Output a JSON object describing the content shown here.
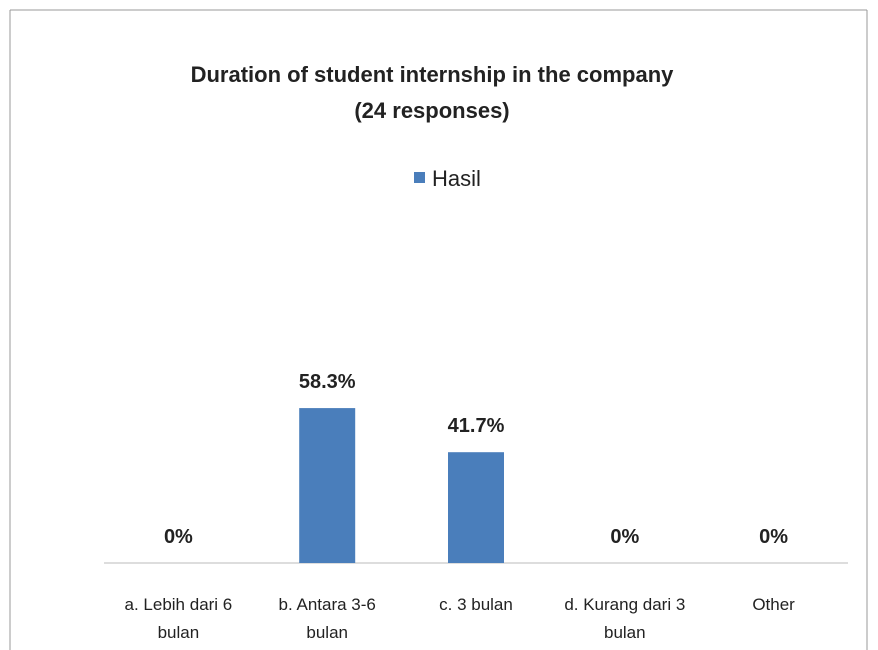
{
  "chart_data": {
    "type": "bar",
    "title": "Duration of student internship in the company",
    "subtitle": "(24 responses)",
    "categories": [
      "a. Lebih dari 6 bulan",
      "b. Antara 3-6 bulan",
      "c. 3 bulan",
      "d. Kurang dari 3 bulan",
      "Other"
    ],
    "series": [
      {
        "name": "Hasil",
        "color": "#4a7ebb",
        "values": [
          0,
          58.3,
          41.7,
          0,
          0
        ],
        "value_labels": [
          "0%",
          "58.3%",
          "41.7%",
          "0%",
          "0%"
        ]
      }
    ],
    "ylim": [
      0,
      70
    ],
    "legend": "top"
  }
}
